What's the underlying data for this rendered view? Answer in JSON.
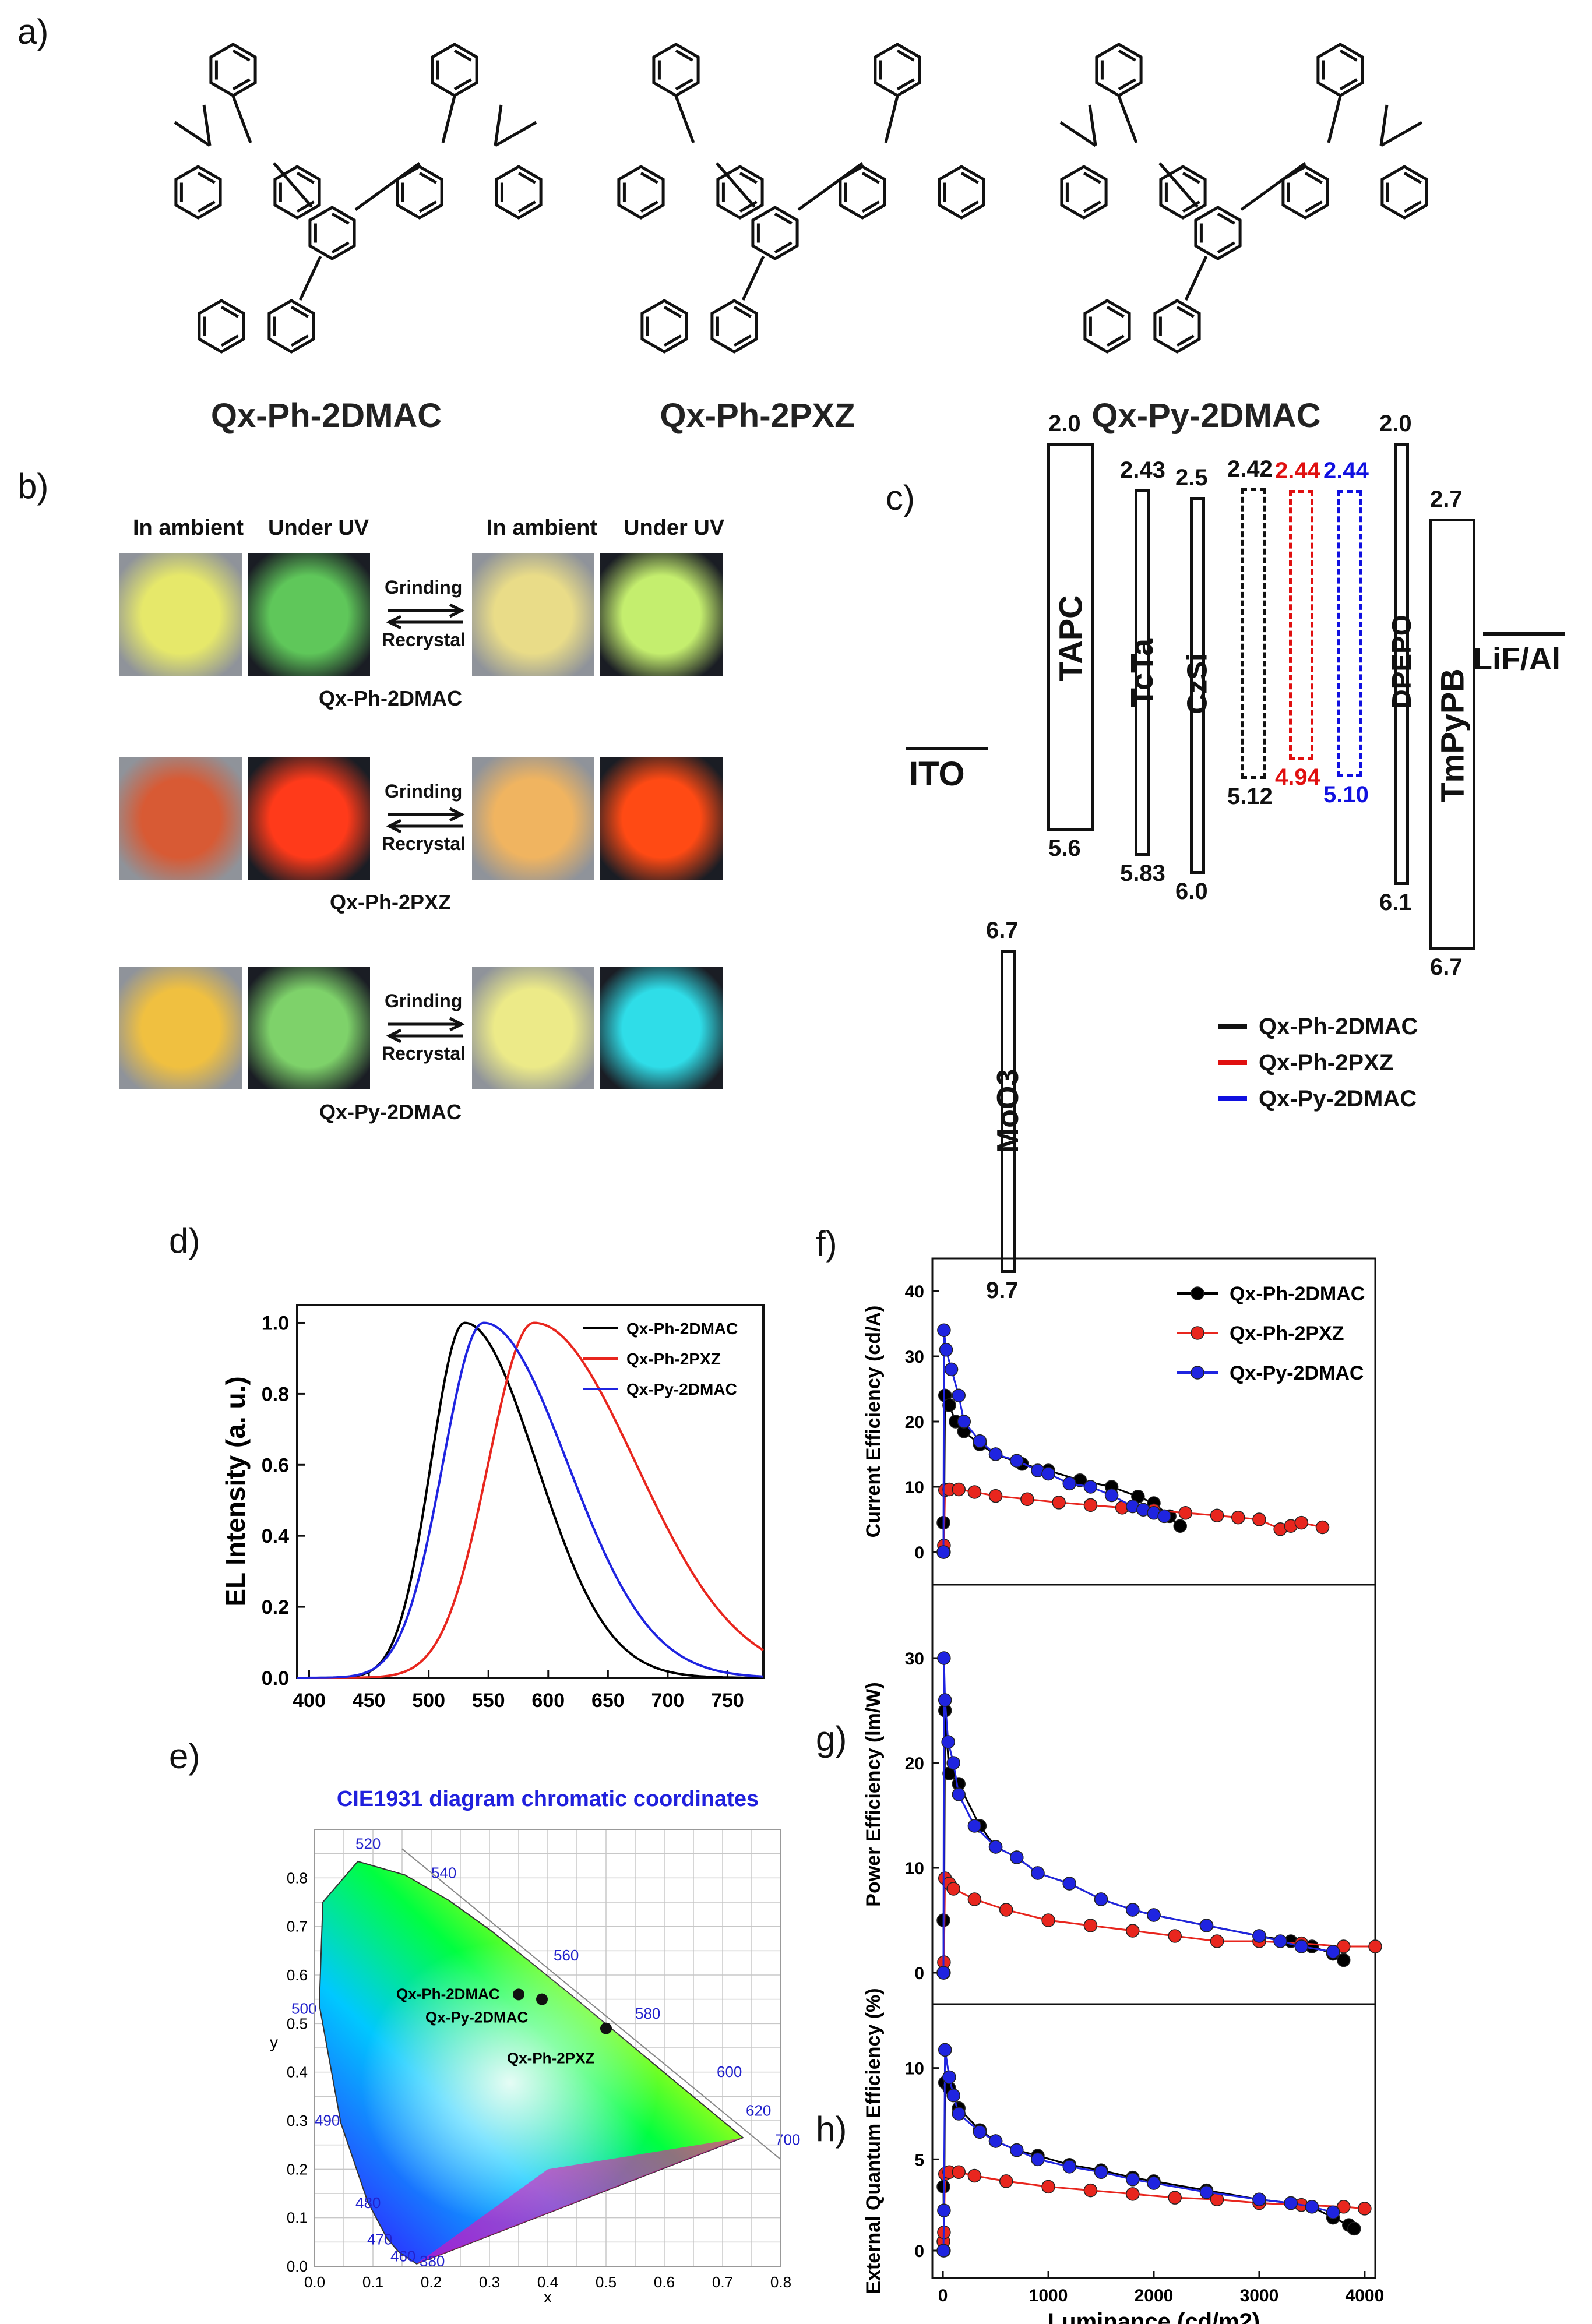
{
  "panels": {
    "a": "a)",
    "b": "b)",
    "c": "c)",
    "d": "d)",
    "e": "e)",
    "f": "f)",
    "g": "g)",
    "h": "h)"
  },
  "molecules": [
    "Qx-Ph-2DMAC",
    "Qx-Ph-2PXZ",
    "Qx-Py-2DMAC"
  ],
  "photos": {
    "headers": [
      "In ambient",
      "Under UV",
      "In ambient",
      "Under UV"
    ],
    "forward": "Grinding",
    "backward": "Recrystal",
    "rows": [
      {
        "name": "Qx-Ph-2DMAC",
        "colors": [
          "#e6e86a",
          "#5fc75a",
          "#e9dc88",
          "#c4ee6e"
        ]
      },
      {
        "name": "Qx-Ph-2PXZ",
        "colors": [
          "#d85a34",
          "#ff3a1a",
          "#f0b460",
          "#ff4a14"
        ]
      },
      {
        "name": "Qx-Py-2DMAC",
        "colors": [
          "#f0c040",
          "#7ed26a",
          "#ecea88",
          "#2fdde8"
        ]
      }
    ]
  },
  "energy": {
    "layers": [
      {
        "name": "ITO"
      },
      {
        "name": "MoO3",
        "top": "6.7",
        "bottom": "9.7"
      },
      {
        "name": "TAPC",
        "top": "2.0",
        "bottom": "5.6"
      },
      {
        "name": "TcTa",
        "top": "2.43",
        "bottom": "5.83"
      },
      {
        "name": "CzSi",
        "top": "2.5",
        "bottom": "6.0"
      },
      {
        "name": "DPEPO",
        "top": "2.0",
        "bottom": "6.1"
      },
      {
        "name": "TmPyPB",
        "top": "2.7",
        "bottom": "6.7"
      },
      {
        "name": "LiF/Al"
      }
    ],
    "emitters": [
      {
        "name": "Qx-Ph-2DMAC",
        "top": "2.42",
        "bottom": "5.12",
        "color": "#111111"
      },
      {
        "name": "Qx-Ph-2PXZ",
        "top": "2.44",
        "bottom": "4.94",
        "color": "#e01010"
      },
      {
        "name": "Qx-Py-2DMAC",
        "top": "2.44",
        "bottom": "5.10",
        "color": "#1010e0"
      }
    ]
  },
  "series_colors": [
    "#000000",
    "#e8261e",
    "#1f24e0"
  ],
  "chart_data": [
    {
      "id": "d",
      "type": "line",
      "xlabel": "",
      "ylabel": "EL Intensity (a. u.)",
      "xlim": [
        390,
        780
      ],
      "ylim": [
        0,
        1.05
      ],
      "xticks": [
        "400",
        "450",
        "500",
        "550",
        "600",
        "650",
        "700",
        "750"
      ],
      "yticks": [
        "0.0",
        "0.2",
        "0.4",
        "0.6",
        "0.8",
        "1.0"
      ],
      "series": [
        {
          "name": "Qx-Ph-2DMAC",
          "peak": 530,
          "sigma_left": 28,
          "sigma_right": 60
        },
        {
          "name": "Qx-Ph-2PXZ",
          "peak": 588,
          "sigma_left": 38,
          "sigma_right": 85
        },
        {
          "name": "Qx-Py-2DMAC",
          "peak": 546,
          "sigma_left": 34,
          "sigma_right": 70
        }
      ]
    },
    {
      "id": "e",
      "type": "scatter",
      "title": "CIE1931 diagram chromatic coordinates",
      "xlabel": "x",
      "ylabel": "y",
      "xlim": [
        0,
        0.8
      ],
      "ylim": [
        0,
        0.9
      ],
      "xticks": [
        "0.0",
        "0.1",
        "0.2",
        "0.3",
        "0.4",
        "0.5",
        "0.6",
        "0.7",
        "0.8"
      ],
      "yticks": [
        "0.0",
        "0.1",
        "0.2",
        "0.3",
        "0.4",
        "0.5",
        "0.6",
        "0.7",
        "0.8"
      ],
      "wavelengths": [
        "380",
        "460",
        "470",
        "480",
        "490",
        "500",
        "520",
        "540",
        "560",
        "580",
        "600",
        "620",
        "700"
      ],
      "points": [
        {
          "name": "Qx-Ph-2DMAC",
          "x": 0.35,
          "y": 0.56
        },
        {
          "name": "Qx-Py-2DMAC",
          "x": 0.39,
          "y": 0.55
        },
        {
          "name": "Qx-Ph-2PXZ",
          "x": 0.5,
          "y": 0.49
        }
      ]
    },
    {
      "id": "f",
      "type": "line",
      "ylabel": "Current Efficiency (cd/A)",
      "xlim": [
        -100,
        4100
      ],
      "ylim": [
        -5,
        45
      ],
      "yticks": [
        "0",
        "10",
        "20",
        "30",
        "40"
      ],
      "series": [
        {
          "name": "Qx-Ph-2DMAC",
          "x": [
            5,
            10,
            20,
            60,
            120,
            200,
            350,
            500,
            750,
            1000,
            1300,
            1600,
            1850,
            2000,
            2150,
            2250
          ],
          "y": [
            4.5,
            0,
            24,
            22.5,
            20,
            18.5,
            16.5,
            15,
            13.5,
            12.5,
            11,
            10,
            8.5,
            7.5,
            5.5,
            4
          ]
        },
        {
          "name": "Qx-Ph-2PXZ",
          "x": [
            5,
            10,
            20,
            60,
            150,
            300,
            500,
            800,
            1100,
            1400,
            1700,
            2000,
            2300,
            2600,
            2800,
            3000,
            3200,
            3300,
            3400,
            3600
          ],
          "y": [
            0,
            1,
            9.5,
            9.6,
            9.6,
            9.2,
            8.6,
            8.1,
            7.6,
            7.2,
            6.8,
            6.4,
            6.0,
            5.6,
            5.3,
            5.0,
            3.5,
            4.0,
            4.5,
            3.8
          ]
        },
        {
          "name": "Qx-Py-2DMAC",
          "x": [
            5,
            10,
            30,
            80,
            150,
            200,
            350,
            500,
            700,
            900,
            1000,
            1200,
            1400,
            1600,
            1800,
            1900,
            2000,
            2100
          ],
          "y": [
            0,
            34,
            31,
            28,
            24,
            20,
            17,
            15,
            14,
            12.5,
            12,
            10.5,
            10,
            8.7,
            7,
            6.5,
            6,
            5.5
          ]
        }
      ]
    },
    {
      "id": "g",
      "type": "line",
      "ylabel": "Power Efficiency (lm/W)",
      "xlim": [
        -100,
        4100
      ],
      "ylim": [
        -3,
        37
      ],
      "yticks": [
        "0",
        "10",
        "20",
        "30"
      ],
      "series": [
        {
          "name": "Qx-Ph-2DMAC",
          "x": [
            5,
            10,
            20,
            60,
            150,
            350,
            500,
            700,
            900,
            1200,
            1500,
            1800,
            2000,
            2500,
            3000,
            3300,
            3500,
            3700,
            3800
          ],
          "y": [
            5,
            0,
            25,
            19,
            18,
            14,
            12,
            11,
            9.5,
            8.5,
            7,
            6,
            5.5,
            4.5,
            3.5,
            3,
            2.5,
            1.8,
            1.2
          ]
        },
        {
          "name": "Qx-Ph-2PXZ",
          "x": [
            5,
            10,
            20,
            60,
            100,
            300,
            600,
            1000,
            1400,
            1800,
            2200,
            2600,
            3000,
            3400,
            3800,
            4100
          ],
          "y": [
            0,
            1,
            9,
            8.5,
            8,
            7,
            6,
            5,
            4.5,
            4,
            3.5,
            3,
            3,
            2.8,
            2.5,
            2.5
          ]
        },
        {
          "name": "Qx-Py-2DMAC",
          "x": [
            5,
            10,
            20,
            50,
            100,
            150,
            300,
            500,
            700,
            900,
            1200,
            1500,
            1800,
            2000,
            2500,
            3000,
            3200,
            3400,
            3700
          ],
          "y": [
            0,
            30,
            26,
            22,
            20,
            17,
            14,
            12,
            11,
            9.5,
            8.5,
            7,
            6,
            5.5,
            4.5,
            3.5,
            3,
            2.5,
            2
          ]
        }
      ]
    },
    {
      "id": "h",
      "type": "line",
      "ylabel": "External Quantum Efficiency (%)",
      "xlabel": "Luminance (cd/m2)",
      "xlim": [
        -100,
        4100
      ],
      "ylim": [
        -1.5,
        13.5
      ],
      "xticks": [
        "0",
        "1000",
        "2000",
        "3000",
        "4000"
      ],
      "yticks": [
        "0",
        "5",
        "10"
      ],
      "series": [
        {
          "name": "Qx-Ph-2DMAC",
          "x": [
            5,
            10,
            20,
            60,
            150,
            350,
            500,
            700,
            900,
            1200,
            1500,
            1800,
            2000,
            2500,
            3000,
            3300,
            3500,
            3700,
            3850,
            3900
          ],
          "y": [
            3.5,
            0,
            9.2,
            8.9,
            7.8,
            6.6,
            6.0,
            5.5,
            5.2,
            4.7,
            4.4,
            4.0,
            3.8,
            3.3,
            2.8,
            2.6,
            2.4,
            1.8,
            1.4,
            1.2
          ]
        },
        {
          "name": "Qx-Ph-2PXZ",
          "x": [
            5,
            10,
            20,
            60,
            150,
            300,
            600,
            1000,
            1400,
            1800,
            2200,
            2600,
            3000,
            3400,
            3800,
            4000
          ],
          "y": [
            0.5,
            1,
            4.2,
            4.3,
            4.3,
            4.1,
            3.8,
            3.5,
            3.3,
            3.1,
            2.9,
            2.8,
            2.6,
            2.5,
            2.4,
            2.3
          ]
        },
        {
          "name": "Qx-Py-2DMAC",
          "x": [
            5,
            10,
            20,
            60,
            100,
            150,
            350,
            500,
            700,
            900,
            1200,
            1500,
            1800,
            2000,
            2500,
            3000,
            3300,
            3500,
            3700
          ],
          "y": [
            0,
            2.2,
            11,
            9.5,
            8.5,
            7.5,
            6.5,
            6.0,
            5.5,
            5.0,
            4.6,
            4.3,
            3.9,
            3.7,
            3.2,
            2.8,
            2.6,
            2.4,
            2.1
          ]
        }
      ]
    }
  ],
  "shared_legend_fgh": [
    "Qx-Ph-2DMAC",
    "Qx-Ph-2PXZ",
    "Qx-Py-2DMAC"
  ]
}
